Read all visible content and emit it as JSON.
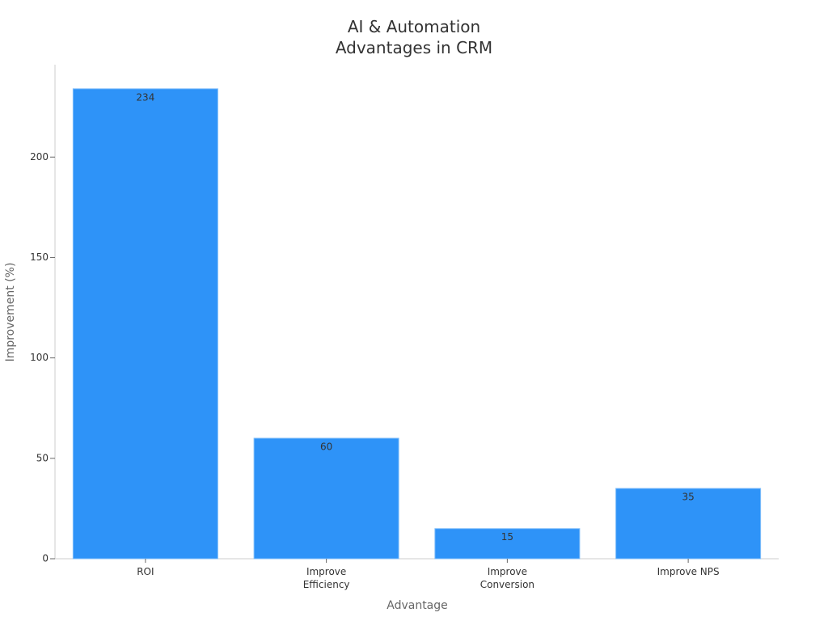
{
  "chart_data": {
    "type": "bar",
    "title": "AI & Automation Advantages in CRM",
    "x_label": "Advantage",
    "y_label": "Improvement (%)",
    "categories": [
      "ROI",
      "Improve Efficiency",
      "Improve Conversion",
      "Improve NPS"
    ],
    "values": [
      234,
      60,
      15,
      35
    ],
    "color": "#2e93f8",
    "ylim": [
      0,
      246
    ],
    "yticks": [
      0,
      50,
      100,
      150,
      200
    ],
    "grid": false
  }
}
